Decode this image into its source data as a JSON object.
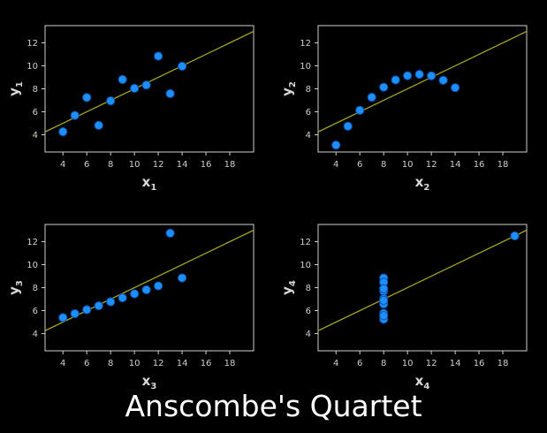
{
  "title": "Anscombe's Quartet",
  "colors": {
    "background": "#000000",
    "frame": "#d0d0d0",
    "point": "#1e8fff",
    "point_edge": "#0a4fa8",
    "fit_line": "#a3a320"
  },
  "chart_data": [
    {
      "type": "scatter",
      "xlabel": "x",
      "xlabel_sub": "1",
      "ylabel": "y",
      "ylabel_sub": "1",
      "xlim": [
        2.5,
        20
      ],
      "ylim": [
        2.5,
        13.5
      ],
      "xticks": [
        4,
        6,
        8,
        10,
        12,
        14,
        16,
        18
      ],
      "yticks": [
        4,
        6,
        8,
        10,
        12
      ],
      "grid": false,
      "fit": {
        "intercept": 3.0,
        "slope": 0.5
      },
      "x": [
        10,
        8,
        13,
        9,
        11,
        14,
        6,
        4,
        12,
        7,
        5
      ],
      "y": [
        8.04,
        6.95,
        7.58,
        8.81,
        8.33,
        9.96,
        7.24,
        4.26,
        10.84,
        4.82,
        5.68
      ]
    },
    {
      "type": "scatter",
      "xlabel": "x",
      "xlabel_sub": "2",
      "ylabel": "y",
      "ylabel_sub": "2",
      "xlim": [
        2.5,
        20
      ],
      "ylim": [
        2.5,
        13.5
      ],
      "xticks": [
        4,
        6,
        8,
        10,
        12,
        14,
        16,
        18
      ],
      "yticks": [
        4,
        6,
        8,
        10,
        12
      ],
      "grid": false,
      "fit": {
        "intercept": 3.0,
        "slope": 0.5
      },
      "x": [
        10,
        8,
        13,
        9,
        11,
        14,
        6,
        4,
        12,
        7,
        5
      ],
      "y": [
        9.14,
        8.14,
        8.74,
        8.77,
        9.26,
        8.1,
        6.13,
        3.1,
        9.13,
        7.26,
        4.74
      ]
    },
    {
      "type": "scatter",
      "xlabel": "x",
      "xlabel_sub": "3",
      "ylabel": "y",
      "ylabel_sub": "3",
      "xlim": [
        2.5,
        20
      ],
      "ylim": [
        2.5,
        13.5
      ],
      "xticks": [
        4,
        6,
        8,
        10,
        12,
        14,
        16,
        18
      ],
      "yticks": [
        4,
        6,
        8,
        10,
        12
      ],
      "grid": false,
      "fit": {
        "intercept": 3.0,
        "slope": 0.5
      },
      "x": [
        10,
        8,
        13,
        9,
        11,
        14,
        6,
        4,
        12,
        7,
        5
      ],
      "y": [
        7.46,
        6.77,
        12.74,
        7.11,
        7.81,
        8.84,
        6.08,
        5.39,
        8.15,
        6.42,
        5.73
      ]
    },
    {
      "type": "scatter",
      "xlabel": "x",
      "xlabel_sub": "4",
      "ylabel": "y",
      "ylabel_sub": "4",
      "xlim": [
        2.5,
        20
      ],
      "ylim": [
        2.5,
        13.5
      ],
      "xticks": [
        4,
        6,
        8,
        10,
        12,
        14,
        16,
        18
      ],
      "yticks": [
        4,
        6,
        8,
        10,
        12
      ],
      "grid": false,
      "fit": {
        "intercept": 3.0,
        "slope": 0.5
      },
      "x": [
        8,
        8,
        8,
        8,
        8,
        8,
        8,
        19,
        8,
        8,
        8
      ],
      "y": [
        6.58,
        5.76,
        7.71,
        8.84,
        8.47,
        7.04,
        5.25,
        12.5,
        5.56,
        7.91,
        6.89
      ]
    }
  ]
}
